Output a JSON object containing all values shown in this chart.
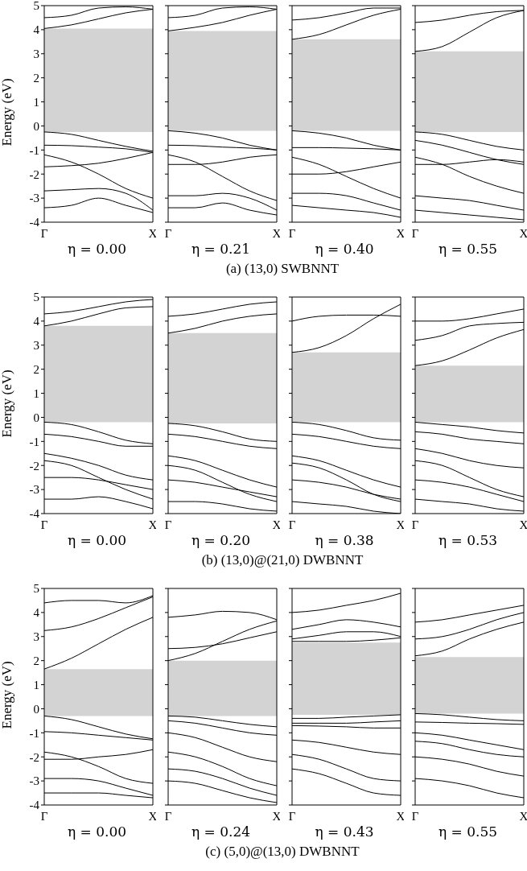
{
  "chart_data": [
    {
      "type": "line",
      "ylabel": "Energy  (eV)",
      "xlabel": "η = 0.00",
      "annotations": [
        "(a) (13,0) SWBNNT"
      ],
      "categories": [
        "Γ",
        null,
        null,
        null,
        "X"
      ],
      "ylim": [
        -4,
        5
      ],
      "yticks": [
        -4,
        -3,
        -2,
        -1,
        0,
        1,
        2,
        3,
        4,
        5
      ],
      "bands": [
        {
          "axis": "y",
          "from": -0.25,
          "to": 4.05,
          "color": "#d3d3d3"
        }
      ],
      "series": [
        {
          "color": "#000000",
          "values": [
            4.05,
            4.2,
            4.45,
            4.7,
            4.85
          ]
        },
        {
          "color": "#000000",
          "values": [
            4.5,
            4.6,
            4.9,
            4.95,
            4.85
          ]
        },
        {
          "color": "#000000",
          "values": [
            -0.25,
            -0.35,
            -0.6,
            -0.85,
            -1.05
          ]
        },
        {
          "color": "#000000",
          "values": [
            -0.8,
            -0.82,
            -0.88,
            -0.95,
            -1.1
          ]
        },
        {
          "color": "#000000",
          "values": [
            -1.2,
            -1.5,
            -2.0,
            -2.6,
            -3.0
          ]
        },
        {
          "color": "#000000",
          "values": [
            -1.7,
            -1.65,
            -1.55,
            -1.35,
            -1.1
          ]
        },
        {
          "color": "#000000",
          "values": [
            -2.7,
            -2.65,
            -2.6,
            -2.8,
            -3.5
          ]
        },
        {
          "color": "#000000",
          "values": [
            -3.4,
            -3.3,
            -3.0,
            -3.3,
            -3.6
          ]
        }
      ]
    },
    {
      "type": "line",
      "xlabel": "η = 0.21",
      "tick_labels": "x",
      "categories": [
        "Γ",
        null,
        null,
        null,
        "X"
      ],
      "ylim": [
        -4,
        5
      ],
      "yticks": [
        -4,
        -3,
        -2,
        -1,
        0,
        1,
        2,
        3,
        4,
        5
      ],
      "bands": [
        {
          "axis": "y",
          "from": -0.2,
          "to": 3.95,
          "color": "#d3d3d3"
        }
      ],
      "series": [
        {
          "color": "#000000",
          "values": [
            3.95,
            4.1,
            4.3,
            4.6,
            4.85
          ]
        },
        {
          "color": "#000000",
          "values": [
            4.5,
            4.6,
            4.9,
            4.95,
            4.85
          ]
        },
        {
          "color": "#000000",
          "values": [
            -0.2,
            -0.3,
            -0.5,
            -0.8,
            -1.0
          ]
        },
        {
          "color": "#000000",
          "values": [
            -0.8,
            -0.82,
            -0.88,
            -0.92,
            -1.0
          ]
        },
        {
          "color": "#000000",
          "values": [
            -1.2,
            -1.5,
            -2.1,
            -2.7,
            -3.1
          ]
        },
        {
          "color": "#000000",
          "values": [
            -1.6,
            -1.6,
            -1.5,
            -1.3,
            -1.2
          ]
        },
        {
          "color": "#000000",
          "values": [
            -2.9,
            -2.9,
            -2.8,
            -3.0,
            -3.5
          ]
        },
        {
          "color": "#000000",
          "values": [
            -3.4,
            -3.4,
            -3.2,
            -3.5,
            -3.7
          ]
        }
      ]
    },
    {
      "type": "line",
      "xlabel": "η = 0.40",
      "tick_labels": "x",
      "categories": [
        "Γ",
        null,
        null,
        null,
        "X"
      ],
      "ylim": [
        -4,
        5
      ],
      "yticks": [
        -4,
        -3,
        -2,
        -1,
        0,
        1,
        2,
        3,
        4,
        5
      ],
      "bands": [
        {
          "axis": "y",
          "from": -0.2,
          "to": 3.6,
          "color": "#d3d3d3"
        }
      ],
      "series": [
        {
          "color": "#000000",
          "values": [
            3.6,
            3.8,
            4.2,
            4.6,
            4.85
          ]
        },
        {
          "color": "#000000",
          "values": [
            4.4,
            4.5,
            4.7,
            4.9,
            4.9
          ]
        },
        {
          "color": "#000000",
          "values": [
            -0.2,
            -0.3,
            -0.5,
            -0.8,
            -1.0
          ]
        },
        {
          "color": "#000000",
          "values": [
            -0.9,
            -0.9,
            -0.92,
            -0.95,
            -1.0
          ]
        },
        {
          "color": "#000000",
          "values": [
            -1.3,
            -1.6,
            -2.1,
            -2.6,
            -3.0
          ]
        },
        {
          "color": "#000000",
          "values": [
            -2.0,
            -2.0,
            -1.9,
            -1.7,
            -1.5
          ]
        },
        {
          "color": "#000000",
          "values": [
            -2.8,
            -2.8,
            -2.9,
            -3.2,
            -3.5
          ]
        },
        {
          "color": "#000000",
          "values": [
            -3.3,
            -3.4,
            -3.5,
            -3.6,
            -3.8
          ]
        }
      ]
    },
    {
      "type": "line",
      "xlabel": "η = 0.55",
      "tick_labels": "x",
      "categories": [
        "Γ",
        null,
        null,
        null,
        "X"
      ],
      "ylim": [
        -4,
        5
      ],
      "yticks": [
        -4,
        -3,
        -2,
        -1,
        0,
        1,
        2,
        3,
        4,
        5
      ],
      "bands": [
        {
          "axis": "y",
          "from": -0.25,
          "to": 3.1,
          "color": "#d3d3d3"
        }
      ],
      "series": [
        {
          "color": "#000000",
          "values": [
            3.1,
            3.3,
            3.9,
            4.5,
            4.8
          ]
        },
        {
          "color": "#000000",
          "values": [
            4.3,
            4.4,
            4.6,
            4.75,
            4.8
          ]
        },
        {
          "color": "#000000",
          "values": [
            -0.25,
            -0.35,
            -0.6,
            -0.85,
            -1.0
          ]
        },
        {
          "color": "#000000",
          "values": [
            -0.6,
            -0.8,
            -1.1,
            -1.4,
            -1.6
          ]
        },
        {
          "color": "#000000",
          "values": [
            -1.3,
            -1.6,
            -2.1,
            -2.5,
            -2.8
          ]
        },
        {
          "color": "#000000",
          "values": [
            -1.6,
            -1.6,
            -1.5,
            -1.4,
            -1.5
          ]
        },
        {
          "color": "#000000",
          "values": [
            -2.9,
            -3.0,
            -3.1,
            -3.3,
            -3.5
          ]
        },
        {
          "color": "#000000",
          "values": [
            -3.5,
            -3.6,
            -3.7,
            -3.8,
            -3.9
          ]
        }
      ]
    },
    {
      "type": "line",
      "ylabel": "Energy  (eV)",
      "xlabel": "η = 0.00",
      "annotations": [
        "(b) (13,0)@(21,0) DWBNNT"
      ],
      "categories": [
        "Γ",
        null,
        null,
        null,
        "X"
      ],
      "ylim": [
        -4,
        5
      ],
      "yticks": [
        -4,
        -3,
        -2,
        -1,
        0,
        1,
        2,
        3,
        4,
        5
      ],
      "bands": [
        {
          "axis": "y",
          "from": -0.2,
          "to": 3.8,
          "color": "#d3d3d3"
        }
      ],
      "series": [
        {
          "color": "#000000",
          "values": [
            3.8,
            4.0,
            4.3,
            4.55,
            4.6
          ]
        },
        {
          "color": "#000000",
          "values": [
            4.3,
            4.4,
            4.6,
            4.8,
            4.9
          ]
        },
        {
          "color": "#000000",
          "values": [
            -0.2,
            -0.3,
            -0.6,
            -0.95,
            -1.1
          ]
        },
        {
          "color": "#000000",
          "values": [
            -0.7,
            -0.8,
            -1.0,
            -1.2,
            -1.2
          ]
        },
        {
          "color": "#000000",
          "values": [
            -1.5,
            -1.7,
            -2.0,
            -2.4,
            -2.6
          ]
        },
        {
          "color": "#000000",
          "values": [
            -1.8,
            -2.0,
            -2.5,
            -3.0,
            -3.4
          ]
        },
        {
          "color": "#000000",
          "values": [
            -2.5,
            -2.5,
            -2.6,
            -2.8,
            -3.0
          ]
        },
        {
          "color": "#000000",
          "values": [
            -3.4,
            -3.4,
            -3.3,
            -3.5,
            -3.8
          ]
        }
      ]
    },
    {
      "type": "line",
      "xlabel": "η = 0.20",
      "tick_labels": "x",
      "categories": [
        "Γ",
        null,
        null,
        null,
        "X"
      ],
      "ylim": [
        -4,
        5
      ],
      "yticks": [
        -4,
        -3,
        -2,
        -1,
        0,
        1,
        2,
        3,
        4,
        5
      ],
      "bands": [
        {
          "axis": "y",
          "from": -0.25,
          "to": 3.5,
          "color": "#d3d3d3"
        }
      ],
      "series": [
        {
          "color": "#000000",
          "values": [
            3.5,
            3.7,
            4.0,
            4.2,
            4.3
          ]
        },
        {
          "color": "#000000",
          "values": [
            4.2,
            4.3,
            4.5,
            4.7,
            4.8
          ]
        },
        {
          "color": "#000000",
          "values": [
            -0.25,
            -0.35,
            -0.6,
            -0.9,
            -1.0
          ]
        },
        {
          "color": "#000000",
          "values": [
            -0.7,
            -0.8,
            -1.0,
            -1.2,
            -1.3
          ]
        },
        {
          "color": "#000000",
          "values": [
            -1.6,
            -1.8,
            -2.2,
            -2.6,
            -2.9
          ]
        },
        {
          "color": "#000000",
          "values": [
            -2.0,
            -2.2,
            -2.7,
            -3.2,
            -3.5
          ]
        },
        {
          "color": "#000000",
          "values": [
            -2.6,
            -2.7,
            -2.9,
            -3.1,
            -3.3
          ]
        },
        {
          "color": "#000000",
          "values": [
            -3.5,
            -3.5,
            -3.6,
            -3.8,
            -3.9
          ]
        }
      ]
    },
    {
      "type": "line",
      "xlabel": "η = 0.38",
      "tick_labels": "x",
      "categories": [
        "Γ",
        null,
        null,
        null,
        "X"
      ],
      "ylim": [
        -4,
        5
      ],
      "yticks": [
        -4,
        -3,
        -2,
        -1,
        0,
        1,
        2,
        3,
        4,
        5
      ],
      "bands": [
        {
          "axis": "y",
          "from": -0.2,
          "to": 2.7,
          "color": "#d3d3d3"
        }
      ],
      "series": [
        {
          "color": "#000000",
          "values": [
            2.7,
            2.9,
            3.4,
            4.1,
            4.7
          ]
        },
        {
          "color": "#000000",
          "values": [
            4.0,
            4.2,
            4.25,
            4.25,
            4.2
          ]
        },
        {
          "color": "#000000",
          "values": [
            -0.2,
            -0.3,
            -0.55,
            -0.85,
            -0.95
          ]
        },
        {
          "color": "#000000",
          "values": [
            -0.7,
            -0.8,
            -1.0,
            -1.2,
            -1.3
          ]
        },
        {
          "color": "#000000",
          "values": [
            -1.6,
            -1.8,
            -2.2,
            -2.6,
            -2.9
          ]
        },
        {
          "color": "#000000",
          "values": [
            -1.9,
            -2.1,
            -2.6,
            -3.2,
            -3.5
          ]
        },
        {
          "color": "#000000",
          "values": [
            -2.6,
            -2.7,
            -2.9,
            -3.2,
            -3.4
          ]
        },
        {
          "color": "#000000",
          "values": [
            -3.5,
            -3.6,
            -3.7,
            -3.9,
            -4.0
          ]
        }
      ]
    },
    {
      "type": "line",
      "xlabel": "η = 0.53",
      "tick_labels": "x",
      "categories": [
        "Γ",
        null,
        null,
        null,
        "X"
      ],
      "ylim": [
        -4,
        5
      ],
      "yticks": [
        -4,
        -3,
        -2,
        -1,
        0,
        1,
        2,
        3,
        4,
        5
      ],
      "bands": [
        {
          "axis": "y",
          "from": -0.2,
          "to": 2.15,
          "color": "#d3d3d3"
        }
      ],
      "series": [
        {
          "color": "#000000",
          "values": [
            2.15,
            2.35,
            2.8,
            3.3,
            3.65
          ]
        },
        {
          "color": "#000000",
          "values": [
            3.2,
            3.4,
            3.8,
            3.9,
            3.95
          ]
        },
        {
          "color": "#000000",
          "values": [
            4.0,
            4.0,
            4.1,
            4.3,
            4.5
          ]
        },
        {
          "color": "#000000",
          "values": [
            -0.2,
            -0.3,
            -0.4,
            -0.55,
            -0.65
          ]
        },
        {
          "color": "#000000",
          "values": [
            -0.6,
            -0.7,
            -0.9,
            -1.0,
            -1.1
          ]
        },
        {
          "color": "#000000",
          "values": [
            -1.3,
            -1.5,
            -1.8,
            -2.0,
            -2.1
          ]
        },
        {
          "color": "#000000",
          "values": [
            -1.8,
            -2.0,
            -2.5,
            -3.0,
            -3.3
          ]
        },
        {
          "color": "#000000",
          "values": [
            -2.6,
            -2.7,
            -2.9,
            -3.2,
            -3.5
          ]
        },
        {
          "color": "#000000",
          "values": [
            -3.4,
            -3.5,
            -3.6,
            -3.8,
            -3.9
          ]
        }
      ]
    },
    {
      "type": "line",
      "ylabel": "Energy  (eV)",
      "xlabel": "η = 0.00",
      "annotations": [
        "(c) (5,0)@(13,0) DWBNNT"
      ],
      "categories": [
        "Γ",
        null,
        null,
        null,
        "X"
      ],
      "ylim": [
        -4,
        5
      ],
      "yticks": [
        -4,
        -3,
        -2,
        -1,
        0,
        1,
        2,
        3,
        4,
        5
      ],
      "bands": [
        {
          "axis": "y",
          "from": -0.3,
          "to": 1.65,
          "color": "#d3d3d3"
        }
      ],
      "series": [
        {
          "color": "#000000",
          "values": [
            1.65,
            2.1,
            2.7,
            3.3,
            3.8
          ]
        },
        {
          "color": "#000000",
          "values": [
            3.25,
            3.4,
            3.75,
            4.2,
            4.65
          ]
        },
        {
          "color": "#000000",
          "values": [
            4.4,
            4.5,
            4.5,
            4.4,
            4.7
          ]
        },
        {
          "color": "#000000",
          "values": [
            -0.3,
            -0.45,
            -0.75,
            -1.05,
            -1.25
          ]
        },
        {
          "color": "#000000",
          "values": [
            -0.95,
            -1.0,
            -1.1,
            -1.2,
            -1.3
          ]
        },
        {
          "color": "#000000",
          "values": [
            -1.8,
            -2.0,
            -2.4,
            -2.9,
            -3.1
          ]
        },
        {
          "color": "#000000",
          "values": [
            -2.1,
            -2.1,
            -2.0,
            -1.9,
            -1.7
          ]
        },
        {
          "color": "#000000",
          "values": [
            -2.9,
            -2.9,
            -3.0,
            -3.3,
            -3.6
          ]
        },
        {
          "color": "#000000",
          "values": [
            -3.5,
            -3.5,
            -3.5,
            -3.6,
            -3.7
          ]
        }
      ]
    },
    {
      "type": "line",
      "xlabel": "η = 0.24",
      "tick_labels": "x",
      "categories": [
        "Γ",
        null,
        null,
        null,
        "X"
      ],
      "ylim": [
        -4,
        5
      ],
      "yticks": [
        -4,
        -3,
        -2,
        -1,
        0,
        1,
        2,
        3,
        4,
        5
      ],
      "bands": [
        {
          "axis": "y",
          "from": -0.3,
          "to": 2.0,
          "color": "#d3d3d3"
        }
      ],
      "series": [
        {
          "color": "#000000",
          "values": [
            2.0,
            2.3,
            2.8,
            3.3,
            3.65
          ]
        },
        {
          "color": "#000000",
          "values": [
            2.5,
            2.55,
            2.7,
            2.95,
            3.2
          ]
        },
        {
          "color": "#000000",
          "values": [
            3.8,
            3.9,
            4.05,
            4.0,
            3.7
          ]
        },
        {
          "color": "#000000",
          "values": [
            -0.3,
            -0.35,
            -0.5,
            -0.65,
            -0.75
          ]
        },
        {
          "color": "#000000",
          "values": [
            -0.5,
            -0.6,
            -0.8,
            -1.0,
            -1.1
          ]
        },
        {
          "color": "#000000",
          "values": [
            -1.0,
            -1.2,
            -1.6,
            -2.0,
            -2.2
          ]
        },
        {
          "color": "#000000",
          "values": [
            -1.8,
            -2.0,
            -2.4,
            -2.9,
            -3.2
          ]
        },
        {
          "color": "#000000",
          "values": [
            -2.5,
            -2.6,
            -2.9,
            -3.3,
            -3.6
          ]
        },
        {
          "color": "#000000",
          "values": [
            -3.0,
            -3.1,
            -3.4,
            -3.7,
            -3.9
          ]
        }
      ]
    },
    {
      "type": "line",
      "xlabel": "η = 0.43",
      "tick_labels": "x",
      "categories": [
        "Γ",
        null,
        null,
        null,
        "X"
      ],
      "ylim": [
        -4,
        5
      ],
      "yticks": [
        -4,
        -3,
        -2,
        -1,
        0,
        1,
        2,
        3,
        4,
        5
      ],
      "bands": [
        {
          "axis": "y",
          "from": -0.25,
          "to": 2.75,
          "color": "#d3d3d3"
        }
      ],
      "series": [
        {
          "color": "#000000",
          "values": [
            2.8,
            2.8,
            2.8,
            2.85,
            2.95
          ]
        },
        {
          "color": "#000000",
          "values": [
            2.9,
            3.05,
            3.2,
            3.2,
            3.0
          ]
        },
        {
          "color": "#000000",
          "values": [
            3.3,
            3.5,
            3.7,
            3.6,
            3.4
          ]
        },
        {
          "color": "#000000",
          "values": [
            4.0,
            4.1,
            4.3,
            4.5,
            4.8
          ]
        },
        {
          "color": "#000000",
          "values": [
            -0.4,
            -0.4,
            -0.35,
            -0.3,
            -0.25
          ]
        },
        {
          "color": "#000000",
          "values": [
            -0.6,
            -0.6,
            -0.6,
            -0.55,
            -0.5
          ]
        },
        {
          "color": "#000000",
          "values": [
            -0.7,
            -0.72,
            -0.75,
            -0.8,
            -0.8
          ]
        },
        {
          "color": "#000000",
          "values": [
            -1.3,
            -1.4,
            -1.6,
            -1.8,
            -1.9
          ]
        },
        {
          "color": "#000000",
          "values": [
            -1.9,
            -2.1,
            -2.5,
            -2.9,
            -3.0
          ]
        },
        {
          "color": "#000000",
          "values": [
            -2.5,
            -2.7,
            -3.1,
            -3.5,
            -3.6
          ]
        }
      ]
    },
    {
      "type": "line",
      "xlabel": "η = 0.55",
      "tick_labels": "x",
      "categories": [
        "Γ",
        null,
        null,
        null,
        "X"
      ],
      "ylim": [
        -4,
        5
      ],
      "yticks": [
        -4,
        -3,
        -2,
        -1,
        0,
        1,
        2,
        3,
        4,
        5
      ],
      "bands": [
        {
          "axis": "y",
          "from": -0.2,
          "to": 2.15,
          "color": "#d3d3d3"
        }
      ],
      "series": [
        {
          "color": "#000000",
          "values": [
            2.2,
            2.4,
            2.9,
            3.3,
            3.6
          ]
        },
        {
          "color": "#000000",
          "values": [
            2.9,
            3.0,
            3.3,
            3.7,
            4.0
          ]
        },
        {
          "color": "#000000",
          "values": [
            3.6,
            3.7,
            3.9,
            4.1,
            4.3
          ]
        },
        {
          "color": "#000000",
          "values": [
            -0.2,
            -0.25,
            -0.35,
            -0.45,
            -0.5
          ]
        },
        {
          "color": "#000000",
          "values": [
            -0.55,
            -0.57,
            -0.6,
            -0.62,
            -0.65
          ]
        },
        {
          "color": "#000000",
          "values": [
            -1.0,
            -1.1,
            -1.3,
            -1.5,
            -1.7
          ]
        },
        {
          "color": "#000000",
          "values": [
            -1.35,
            -1.45,
            -1.7,
            -1.9,
            -2.0
          ]
        },
        {
          "color": "#000000",
          "values": [
            -2.0,
            -2.1,
            -2.3,
            -2.6,
            -2.8
          ]
        },
        {
          "color": "#000000",
          "values": [
            -2.9,
            -3.0,
            -3.2,
            -3.5,
            -3.7
          ]
        }
      ]
    }
  ]
}
